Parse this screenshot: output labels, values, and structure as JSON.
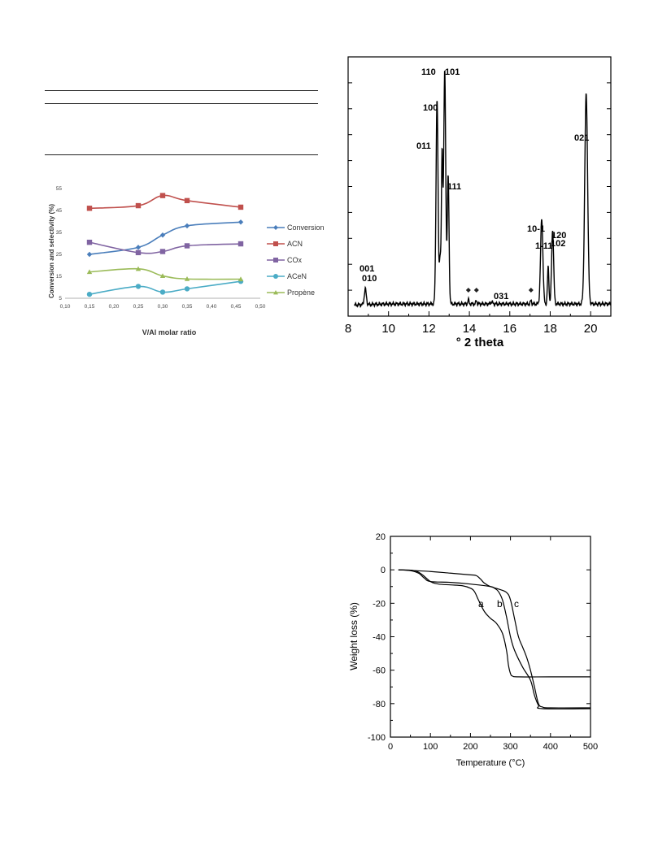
{
  "chart_data": [
    {
      "type": "line",
      "xlabel": "V/Al molar ratio",
      "ylabel": "Conversion and selectivity (%)",
      "xlim": [
        0.1,
        0.5
      ],
      "ylim": [
        5,
        55
      ],
      "x_ticks": [
        "0,10",
        "0,15",
        "0,20",
        "0,25",
        "0,30",
        "0,35",
        "0,40",
        "0,45",
        "0,50"
      ],
      "y_ticks": [
        "5",
        "15",
        "25",
        "35",
        "45",
        "55"
      ],
      "x": [
        0.15,
        0.25,
        0.3,
        0.35,
        0.46
      ],
      "legend_position": "right",
      "grid": false,
      "series": [
        {
          "name": "Conversion",
          "color": "#4A7EBB",
          "marker": "diamond",
          "values": [
            25.0,
            28.2,
            33.8,
            38.0,
            39.7
          ]
        },
        {
          "name": "ACN",
          "color": "#C0504D",
          "marker": "square",
          "values": [
            46.0,
            47.2,
            51.8,
            49.5,
            46.5
          ]
        },
        {
          "name": "COx",
          "color": "#8064A2",
          "marker": "square",
          "values": [
            30.5,
            25.8,
            26.3,
            28.9,
            29.8
          ]
        },
        {
          "name": "ACeN",
          "color": "#4BACC6",
          "marker": "circle",
          "values": [
            6.8,
            10.4,
            7.8,
            9.3,
            12.7
          ]
        },
        {
          "name": "Propène",
          "color": "#9BBB59",
          "marker": "triangle",
          "values": [
            17.0,
            18.4,
            15.2,
            13.8,
            13.7
          ]
        }
      ]
    },
    {
      "type": "line",
      "xlabel": "° 2 theta",
      "ylabel": "",
      "xlim": [
        8,
        21
      ],
      "ylim": [
        0,
        100
      ],
      "x_ticks": [
        "8",
        "10",
        "12",
        "14",
        "16",
        "18",
        "20"
      ],
      "grid": false,
      "peak_labels": [
        "001",
        "010",
        "011",
        "100",
        "110",
        "101",
        "111",
        "031",
        "10-1",
        "1-11",
        "120",
        "102",
        "021"
      ],
      "asterisk_positions": [
        13.95,
        14.35,
        17.05
      ],
      "peaks": [
        {
          "x": 8.85,
          "height": 5.5,
          "width": 0.07
        },
        {
          "x": 12.4,
          "height": 72,
          "width": 0.07
        },
        {
          "x": 12.55,
          "height": 16,
          "width": 0.05
        },
        {
          "x": 12.65,
          "height": 52,
          "width": 0.05
        },
        {
          "x": 12.78,
          "height": 82,
          "width": 0.07
        },
        {
          "x": 12.95,
          "height": 45,
          "width": 0.06
        },
        {
          "x": 13.95,
          "height": 1.5,
          "width": 0.04
        },
        {
          "x": 14.35,
          "height": 1.2,
          "width": 0.04
        },
        {
          "x": 15.1,
          "height": 0.8,
          "width": 0.06
        },
        {
          "x": 17.05,
          "height": 1.2,
          "width": 0.04
        },
        {
          "x": 17.58,
          "height": 30,
          "width": 0.08
        },
        {
          "x": 17.9,
          "height": 13,
          "width": 0.05
        },
        {
          "x": 18.12,
          "height": 26,
          "width": 0.07
        },
        {
          "x": 19.78,
          "height": 74,
          "width": 0.1
        }
      ]
    },
    {
      "type": "line",
      "xlabel": "Temperature (°C)",
      "ylabel": "Weight loss (%)",
      "xlim": [
        0,
        500
      ],
      "ylim": [
        -100,
        20
      ],
      "x_ticks": [
        "0",
        "100",
        "200",
        "300",
        "400",
        "500"
      ],
      "y_ticks": [
        "20",
        "0",
        "-20",
        "-40",
        "-60",
        "-80",
        "-100"
      ],
      "grid": false,
      "series": [
        {
          "name": "a",
          "x": [
            20,
            60,
            80,
            100,
            120,
            150,
            180,
            200,
            210,
            220,
            235,
            250,
            265,
            280,
            290,
            295,
            300,
            305,
            320,
            400,
            500
          ],
          "values": [
            0,
            -0.5,
            -3,
            -7,
            -8.5,
            -9,
            -9.5,
            -11,
            -13,
            -18,
            -25,
            -29,
            -32,
            -38,
            -48,
            -57,
            -62,
            -63.5,
            -64,
            -64,
            -64
          ]
        },
        {
          "name": "b",
          "x": [
            20,
            50,
            70,
            85,
            100,
            150,
            200,
            250,
            260,
            270,
            280,
            290,
            300,
            310,
            330,
            350,
            360,
            370,
            380,
            500
          ],
          "values": [
            0,
            -0.5,
            -2,
            -5,
            -7,
            -7.5,
            -8.5,
            -10,
            -11,
            -13,
            -18,
            -28,
            -40,
            -48,
            -58,
            -66,
            -75,
            -81,
            -83,
            -83
          ]
        },
        {
          "name": "c",
          "x": [
            20,
            100,
            150,
            200,
            215,
            225,
            235,
            250,
            270,
            290,
            300,
            310,
            320,
            330,
            340,
            350,
            360,
            370,
            380,
            400,
            500
          ],
          "values": [
            0,
            -1,
            -2,
            -3,
            -3.5,
            -5.5,
            -8,
            -10,
            -11.5,
            -13.5,
            -18,
            -29,
            -40,
            -46,
            -52,
            -60,
            -70,
            -80,
            -82,
            -82.5,
            -82.5
          ]
        }
      ]
    }
  ]
}
